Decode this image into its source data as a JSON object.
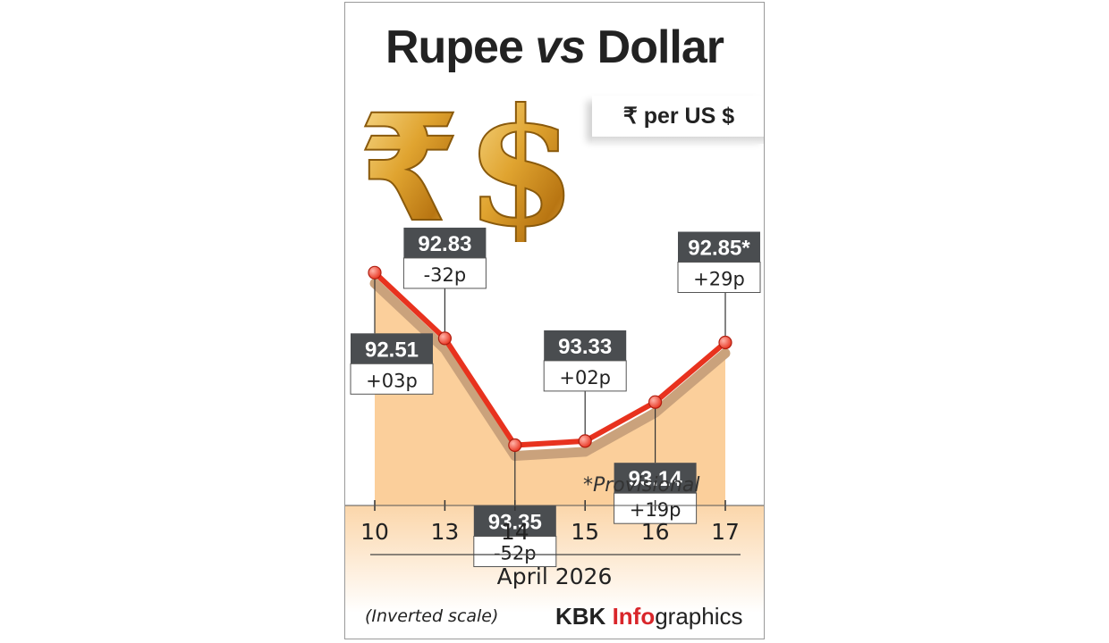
{
  "title": {
    "part1": "Rupee",
    "part2": "vs",
    "part3": "Dollar"
  },
  "unit_label": "₹ per US $",
  "symbols": {
    "rupee": "₹",
    "dollar": "$"
  },
  "note_provisional": "*Provisional",
  "month_label": "April 2026",
  "scale_note": "(Inverted scale)",
  "credit": {
    "part1": "KBK ",
    "part2": "Info",
    "part3": "graphics"
  },
  "colors": {
    "line": "#e8321e",
    "marker": "#e8321e",
    "area": "#fbcf9b",
    "band": "#fbd6aa",
    "shadow": "#caa27c",
    "label_bg": "#4a4d50",
    "gold": "#e0a430"
  },
  "chart_data": {
    "type": "line",
    "title": "Rupee vs Dollar",
    "xlabel": "April 2026",
    "ylabel": "₹ per US $",
    "inverted_y": true,
    "categories": [
      "10",
      "13",
      "14",
      "15",
      "16",
      "17"
    ],
    "series": [
      {
        "values": [
          92.51,
          92.83,
          93.35,
          93.33,
          93.14,
          92.85
        ],
        "value_labels": [
          "92.51",
          "92.83",
          "93.35",
          "93.33",
          "93.14",
          "92.85*"
        ],
        "change_labels": [
          "+03p",
          "-32p",
          "-52p",
          "+02p",
          "+19p",
          "+29p"
        ]
      }
    ],
    "ylim": [
      92.3,
      93.5
    ],
    "grid": false,
    "legend": "none"
  }
}
